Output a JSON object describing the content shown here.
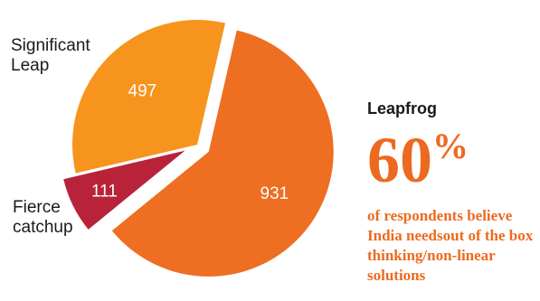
{
  "chart_data": {
    "type": "pie",
    "slices": [
      {
        "label": "Leapfrog",
        "value": 931,
        "color": "#ee6e22",
        "exploded": true
      },
      {
        "label": "Fierce catchup",
        "value": 111,
        "color": "#b8233a",
        "exploded": true
      },
      {
        "label": "Significant Leap",
        "value": 497,
        "color": "#f7941e",
        "exploded": false
      }
    ],
    "outer_labels": {
      "significant_leap": [
        "Significant",
        "Leap"
      ],
      "fierce_catchup": [
        "Fierce",
        "catchup"
      ]
    },
    "callout": {
      "title": "Leapfrog",
      "percent_number": "60",
      "percent_symbol": "%",
      "description": "of respondents believe India needsout of the box thinking/non-linear solutions"
    }
  }
}
